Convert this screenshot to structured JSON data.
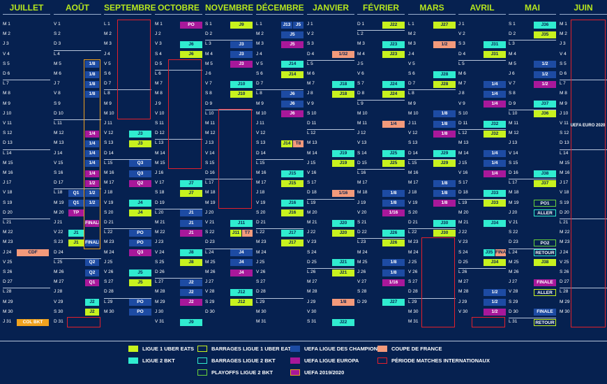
{
  "months": [
    {
      "name": "JUILLET",
      "days": 31,
      "start": 1
    },
    {
      "name": "AOÛT",
      "days": 31,
      "start": 4
    },
    {
      "name": "SEPTEMBRE",
      "days": 30,
      "start": 0
    },
    {
      "name": "OCTOBRE",
      "days": 31,
      "start": 2
    },
    {
      "name": "NOVEMBRE",
      "days": 30,
      "start": 5
    },
    {
      "name": "DÉCEMBRE",
      "days": 31,
      "start": 0
    },
    {
      "name": "JANVIER",
      "days": 31,
      "start": 3
    },
    {
      "name": "FÉVRIER",
      "days": 29,
      "start": 6
    },
    {
      "name": "MARS",
      "days": 31,
      "start": 0
    },
    {
      "name": "AVRIL",
      "days": 30,
      "start": 3
    },
    {
      "name": "MAI",
      "days": 31,
      "start": 5
    },
    {
      "name": "JUIN",
      "days": 30,
      "start": 1
    }
  ],
  "weekday_letters": [
    "L",
    "M",
    "M",
    "J",
    "V",
    "S",
    "D"
  ],
  "events": [
    {
      "m": 0,
      "d": 24,
      "c": "CDF",
      "t": "CDF"
    },
    {
      "m": 0,
      "d": 31,
      "c": "CDL",
      "t": "COL BKT"
    },
    {
      "m": 1,
      "d": 5,
      "c": "UCL",
      "t": "1/8"
    },
    {
      "m": 1,
      "d": 6,
      "c": "UCL",
      "t": "1/8"
    },
    {
      "m": 1,
      "d": 7,
      "c": "UCL",
      "t": "1/8"
    },
    {
      "m": 1,
      "d": 8,
      "c": "UCL",
      "t": "1/8"
    },
    {
      "m": 1,
      "d": 12,
      "c": "UEL",
      "t": "1/4"
    },
    {
      "m": 1,
      "d": 13,
      "c": "UCL",
      "t": "1/4"
    },
    {
      "m": 1,
      "d": 14,
      "c": "UCL",
      "t": "1/4"
    },
    {
      "m": 1,
      "d": 15,
      "c": "UCL",
      "t": "1/4"
    },
    {
      "m": 1,
      "d": 16,
      "c": "UEL",
      "t": "1/4"
    },
    {
      "m": 1,
      "d": 17,
      "c": "UEL",
      "t": "1/2"
    },
    {
      "m": 1,
      "d": 18,
      "c": "UCL",
      "t": "1/2"
    },
    {
      "m": 1,
      "d": 19,
      "c": "UCL",
      "t": "1/2"
    },
    {
      "m": 1,
      "d": 21,
      "c": "UEL",
      "t": "FINALE"
    },
    {
      "m": 1,
      "d": 23,
      "c": "UCL",
      "t": "FINALE"
    },
    {
      "m": 1,
      "d": 18,
      "c": "UCL",
      "t": "Q1",
      "lane": "a"
    },
    {
      "m": 1,
      "d": 19,
      "c": "UCL",
      "t": "Q1",
      "lane": "a"
    },
    {
      "m": 1,
      "d": 20,
      "c": "UEL",
      "t": "TP",
      "lane": "a"
    },
    {
      "m": 1,
      "d": 22,
      "c": "L2",
      "t": "J1",
      "lane": "a"
    },
    {
      "m": 1,
      "d": 23,
      "c": "L1",
      "t": "J1",
      "lane": "a"
    },
    {
      "m": 1,
      "d": 25,
      "c": "UCL",
      "t": "Q2"
    },
    {
      "m": 1,
      "d": 26,
      "c": "UCL",
      "t": "Q2"
    },
    {
      "m": 1,
      "d": 27,
      "c": "UEL",
      "t": "Q1"
    },
    {
      "m": 1,
      "d": 29,
      "c": "L2",
      "t": "J2"
    },
    {
      "m": 1,
      "d": 30,
      "c": "L1",
      "t": "J2"
    },
    {
      "m": 2,
      "d": 12,
      "c": "L2",
      "t": "J3"
    },
    {
      "m": 2,
      "d": 13,
      "c": "L1",
      "t": "J3"
    },
    {
      "m": 2,
      "d": 15,
      "c": "UCL",
      "t": "Q3"
    },
    {
      "m": 2,
      "d": 16,
      "c": "UCL",
      "t": "Q3"
    },
    {
      "m": 2,
      "d": 17,
      "c": "UEL",
      "t": "Q2"
    },
    {
      "m": 2,
      "d": 19,
      "c": "L2",
      "t": "J4"
    },
    {
      "m": 2,
      "d": 20,
      "c": "L1",
      "t": "J4"
    },
    {
      "m": 2,
      "d": 22,
      "c": "UCL",
      "t": "PO"
    },
    {
      "m": 2,
      "d": 23,
      "c": "UCL",
      "t": "PO"
    },
    {
      "m": 2,
      "d": 24,
      "c": "UEL",
      "t": "Q3"
    },
    {
      "m": 2,
      "d": 26,
      "c": "L2",
      "t": "J5"
    },
    {
      "m": 2,
      "d": 27,
      "c": "L1",
      "t": "J5"
    },
    {
      "m": 2,
      "d": 29,
      "c": "UCL",
      "t": "PO"
    },
    {
      "m": 2,
      "d": 30,
      "c": "UCL",
      "t": "PO"
    },
    {
      "m": 3,
      "d": 1,
      "c": "UEL",
      "t": "PO"
    },
    {
      "m": 3,
      "d": 3,
      "c": "L2",
      "t": "J6"
    },
    {
      "m": 3,
      "d": 4,
      "c": "L1",
      "t": "J6"
    },
    {
      "m": 3,
      "d": 17,
      "c": "L2",
      "t": "J7"
    },
    {
      "m": 3,
      "d": 18,
      "c": "L1",
      "t": "J7"
    },
    {
      "m": 3,
      "d": 20,
      "c": "UCL",
      "t": "J1"
    },
    {
      "m": 3,
      "d": 21,
      "c": "UCL",
      "t": "J1"
    },
    {
      "m": 3,
      "d": 22,
      "c": "UEL",
      "t": "J1"
    },
    {
      "m": 3,
      "d": 24,
      "c": "L2",
      "t": "J8"
    },
    {
      "m": 3,
      "d": 25,
      "c": "L1",
      "t": "J8"
    },
    {
      "m": 3,
      "d": 27,
      "c": "UCL",
      "t": "J2"
    },
    {
      "m": 3,
      "d": 28,
      "c": "UCL",
      "t": "J2"
    },
    {
      "m": 3,
      "d": 29,
      "c": "UEL",
      "t": "J2"
    },
    {
      "m": 3,
      "d": 31,
      "c": "L2",
      "t": "J9"
    },
    {
      "m": 4,
      "d": 1,
      "c": "L1",
      "t": "J9"
    },
    {
      "m": 4,
      "d": 3,
      "c": "UCL",
      "t": "J3"
    },
    {
      "m": 4,
      "d": 4,
      "c": "UCL",
      "t": "J3"
    },
    {
      "m": 4,
      "d": 5,
      "c": "UEL",
      "t": "J3"
    },
    {
      "m": 4,
      "d": 7,
      "c": "L2",
      "t": "J10"
    },
    {
      "m": 4,
      "d": 8,
      "c": "L1",
      "t": "J10"
    },
    {
      "m": 4,
      "d": 21,
      "c": "L2",
      "t": "J11"
    },
    {
      "m": 4,
      "d": 22,
      "c": "L1",
      "t": "J11",
      "half": 1
    },
    {
      "m": 4,
      "d": 22,
      "c": "CDF",
      "t": "T7",
      "half": 2
    },
    {
      "m": 4,
      "d": 24,
      "c": "UCL",
      "t": "J4"
    },
    {
      "m": 4,
      "d": 25,
      "c": "UCL",
      "t": "J4"
    },
    {
      "m": 4,
      "d": 26,
      "c": "UEL",
      "t": "J4"
    },
    {
      "m": 4,
      "d": 28,
      "c": "L2",
      "t": "J12"
    },
    {
      "m": 4,
      "d": 29,
      "c": "L1",
      "t": "J12"
    },
    {
      "m": 5,
      "d": 1,
      "c": "UCL",
      "t": "J13",
      "half": 1
    },
    {
      "m": 5,
      "d": 1,
      "c": "UCL",
      "t": "J5",
      "half": 2
    },
    {
      "m": 5,
      "d": 2,
      "c": "UCL",
      "t": "J5"
    },
    {
      "m": 5,
      "d": 3,
      "c": "UEL",
      "t": "J5"
    },
    {
      "m": 5,
      "d": 5,
      "c": "L2",
      "t": "J14"
    },
    {
      "m": 5,
      "d": 6,
      "c": "L1",
      "t": "J14"
    },
    {
      "m": 5,
      "d": 8,
      "c": "UCL",
      "t": "J6"
    },
    {
      "m": 5,
      "d": 9,
      "c": "UCL",
      "t": "J6"
    },
    {
      "m": 5,
      "d": 10,
      "c": "UEL",
      "t": "J6"
    },
    {
      "m": 5,
      "d": 13,
      "c": "L1",
      "t": "J14",
      "half": 1
    },
    {
      "m": 5,
      "d": 13,
      "c": "CDF",
      "t": "T8",
      "half": 2
    },
    {
      "m": 5,
      "d": 16,
      "c": "L2",
      "t": "J15"
    },
    {
      "m": 5,
      "d": 17,
      "c": "L1",
      "t": "J15"
    },
    {
      "m": 5,
      "d": 19,
      "c": "L2",
      "t": "J16"
    },
    {
      "m": 5,
      "d": 20,
      "c": "L1",
      "t": "J16"
    },
    {
      "m": 5,
      "d": 22,
      "c": "L2",
      "t": "J17"
    },
    {
      "m": 5,
      "d": 23,
      "c": "L1",
      "t": "J17"
    },
    {
      "m": 6,
      "d": 4,
      "c": "CDF",
      "t": "1/32"
    },
    {
      "m": 6,
      "d": 7,
      "c": "L2",
      "t": "J18"
    },
    {
      "m": 6,
      "d": 8,
      "c": "L1",
      "t": "J18"
    },
    {
      "m": 6,
      "d": 14,
      "c": "L2",
      "t": "J19"
    },
    {
      "m": 6,
      "d": 15,
      "c": "L1",
      "t": "J19"
    },
    {
      "m": 6,
      "d": 18,
      "c": "CDF",
      "t": "1/16"
    },
    {
      "m": 6,
      "d": 21,
      "c": "L2",
      "t": "J20"
    },
    {
      "m": 6,
      "d": 22,
      "c": "L1",
      "t": "J20"
    },
    {
      "m": 6,
      "d": 25,
      "c": "L2",
      "t": "J21"
    },
    {
      "m": 6,
      "d": 26,
      "c": "L1",
      "t": "J21"
    },
    {
      "m": 6,
      "d": 29,
      "c": "CDF",
      "t": "1/8"
    },
    {
      "m": 6,
      "d": 31,
      "c": "L2",
      "t": "J22"
    },
    {
      "m": 7,
      "d": 1,
      "c": "L1",
      "t": "J22"
    },
    {
      "m": 7,
      "d": 3,
      "c": "L2",
      "t": "J23"
    },
    {
      "m": 7,
      "d": 4,
      "c": "L1",
      "t": "J23"
    },
    {
      "m": 7,
      "d": 7,
      "c": "L2",
      "t": "J24"
    },
    {
      "m": 7,
      "d": 8,
      "c": "L1",
      "t": "J24"
    },
    {
      "m": 7,
      "d": 11,
      "c": "CDF",
      "t": "1/4"
    },
    {
      "m": 7,
      "d": 14,
      "c": "L2",
      "t": "J25"
    },
    {
      "m": 7,
      "d": 15,
      "c": "L1",
      "t": "J25"
    },
    {
      "m": 7,
      "d": 18,
      "c": "UCL",
      "t": "1/8"
    },
    {
      "m": 7,
      "d": 19,
      "c": "UCL",
      "t": "1/8"
    },
    {
      "m": 7,
      "d": 20,
      "c": "UEL",
      "t": "1/16"
    },
    {
      "m": 7,
      "d": 22,
      "c": "L2",
      "t": "J26"
    },
    {
      "m": 7,
      "d": 23,
      "c": "L1",
      "t": "J26"
    },
    {
      "m": 7,
      "d": 25,
      "c": "UCL",
      "t": "1/8"
    },
    {
      "m": 7,
      "d": 26,
      "c": "UCL",
      "t": "1/8"
    },
    {
      "m": 7,
      "d": 27,
      "c": "UEL",
      "t": "1/16"
    },
    {
      "m": 7,
      "d": 29,
      "c": "L2",
      "t": "J27"
    },
    {
      "m": 8,
      "d": 1,
      "c": "L1",
      "t": "J27"
    },
    {
      "m": 8,
      "d": 3,
      "c": "CDF",
      "t": "1/2"
    },
    {
      "m": 8,
      "d": 6,
      "c": "L2",
      "t": "J28"
    },
    {
      "m": 8,
      "d": 7,
      "c": "L1",
      "t": "J28"
    },
    {
      "m": 8,
      "d": 10,
      "c": "UCL",
      "t": "1/8"
    },
    {
      "m": 8,
      "d": 11,
      "c": "UCL",
      "t": "1/8"
    },
    {
      "m": 8,
      "d": 12,
      "c": "UEL",
      "t": "1/8"
    },
    {
      "m": 8,
      "d": 14,
      "c": "L2",
      "t": "J29"
    },
    {
      "m": 8,
      "d": 15,
      "c": "L1",
      "t": "J29"
    },
    {
      "m": 8,
      "d": 17,
      "c": "UCL",
      "t": "1/8"
    },
    {
      "m": 8,
      "d": 18,
      "c": "UCL",
      "t": "1/8"
    },
    {
      "m": 8,
      "d": 19,
      "c": "UEL",
      "t": "1/8"
    },
    {
      "m": 8,
      "d": 21,
      "c": "L2",
      "t": "J30"
    },
    {
      "m": 8,
      "d": 22,
      "c": "L1",
      "t": "J30"
    },
    {
      "m": 9,
      "d": 3,
      "c": "L2",
      "t": "J31"
    },
    {
      "m": 9,
      "d": 4,
      "c": "L1",
      "t": "J31"
    },
    {
      "m": 9,
      "d": 7,
      "c": "UCL",
      "t": "1/4"
    },
    {
      "m": 9,
      "d": 8,
      "c": "UCL",
      "t": "1/4"
    },
    {
      "m": 9,
      "d": 9,
      "c": "UEL",
      "t": "1/4"
    },
    {
      "m": 9,
      "d": 11,
      "c": "L2",
      "t": "J32"
    },
    {
      "m": 9,
      "d": 12,
      "c": "L1",
      "t": "J32"
    },
    {
      "m": 9,
      "d": 14,
      "c": "UCL",
      "t": "1/4"
    },
    {
      "m": 9,
      "d": 15,
      "c": "UCL",
      "t": "1/4"
    },
    {
      "m": 9,
      "d": 16,
      "c": "UEL",
      "t": "1/4"
    },
    {
      "m": 9,
      "d": 18,
      "c": "L2",
      "t": "J33"
    },
    {
      "m": 9,
      "d": 19,
      "c": "L1",
      "t": "J33"
    },
    {
      "m": 9,
      "d": 21,
      "c": "L2",
      "t": "J34"
    },
    {
      "m": 9,
      "d": 24,
      "c": "L2",
      "t": "J35",
      "half": 1
    },
    {
      "m": 9,
      "d": 24,
      "c": "CDF",
      "t": "FINALE",
      "half": 2
    },
    {
      "m": 9,
      "d": 25,
      "c": "L1",
      "t": "J34"
    },
    {
      "m": 9,
      "d": 28,
      "c": "UCL",
      "t": "1/2"
    },
    {
      "m": 9,
      "d": 29,
      "c": "UCL",
      "t": "1/2"
    },
    {
      "m": 9,
      "d": 30,
      "c": "UEL",
      "t": "1/2"
    },
    {
      "m": 10,
      "d": 1,
      "c": "L2",
      "t": "J36"
    },
    {
      "m": 10,
      "d": 2,
      "c": "L1",
      "t": "J35"
    },
    {
      "m": 10,
      "d": 5,
      "c": "UCL",
      "t": "1/2"
    },
    {
      "m": 10,
      "d": 6,
      "c": "UCL",
      "t": "1/2"
    },
    {
      "m": 10,
      "d": 7,
      "c": "UEL",
      "t": "1/2"
    },
    {
      "m": 10,
      "d": 9,
      "c": "L2",
      "t": "J37"
    },
    {
      "m": 10,
      "d": 10,
      "c": "L1",
      "t": "J36"
    },
    {
      "m": 10,
      "d": 16,
      "c": "L2",
      "t": "J38"
    },
    {
      "m": 10,
      "d": 17,
      "c": "L1",
      "t": "J37"
    },
    {
      "m": 10,
      "d": 19,
      "c": "PO2",
      "t": "PO1"
    },
    {
      "m": 10,
      "d": 20,
      "c": "BL2",
      "t": "ALLER"
    },
    {
      "m": 10,
      "d": 23,
      "c": "PO2",
      "t": "PO2"
    },
    {
      "m": 10,
      "d": 24,
      "c": "BL2",
      "t": "RETOUR"
    },
    {
      "m": 10,
      "d": 25,
      "c": "L1",
      "t": "J38"
    },
    {
      "m": 10,
      "d": 27,
      "c": "UEL",
      "t": "FINALE"
    },
    {
      "m": 10,
      "d": 28,
      "c": "BL1",
      "t": "ALLER"
    },
    {
      "m": 10,
      "d": 30,
      "c": "UCL",
      "t": "FINALE"
    },
    {
      "m": 10,
      "d": 31,
      "c": "BL1",
      "t": "RETOUR"
    }
  ],
  "intl_boxes": [
    {
      "m": 2,
      "from": 1,
      "to": 10
    },
    {
      "m": 3,
      "from": 5,
      "to": 15
    },
    {
      "m": 4,
      "from": 10,
      "to": 19
    },
    {
      "m": 8,
      "from": 23,
      "to": 31
    },
    {
      "m": 11,
      "from": 1,
      "to": 31
    },
    {
      "m": 1,
      "from": 31,
      "to": 31
    },
    {
      "m": 9,
      "from": 31,
      "to": 31
    }
  ],
  "euro_box": {
    "m": 1,
    "from": 5,
    "to": 23
  },
  "euro_label": "UEFA EURO 2020",
  "legend": [
    {
      "c": "L1",
      "label": "LIGUE 1 UBER EATS",
      "col": 0,
      "row": 0
    },
    {
      "c": "L2",
      "label": "LIGUE 2 BKT",
      "col": 0,
      "row": 1
    },
    {
      "c": "BL1",
      "label": "BARRAGES LIGUE 1 UBER EATS",
      "col": 1,
      "row": 0
    },
    {
      "c": "BL2",
      "label": "BARRAGES LIGUE 2 BKT",
      "col": 1,
      "row": 1
    },
    {
      "c": "PO2",
      "label": "PLAYOFFS LIGUE 2 BKT",
      "col": 1,
      "row": 2
    },
    {
      "c": "UCL",
      "label": "UEFA LIGUE DES CHAMPIONS",
      "col": 2,
      "row": 0
    },
    {
      "c": "UEL",
      "label": "UEFA LIGUE EUROPA",
      "col": 2,
      "row": 1
    },
    {
      "c": "EURO",
      "label": "UEFA 2019/2020",
      "col": 2,
      "row": 2
    },
    {
      "c": "CDF",
      "label": "COUPE DE FRANCE",
      "col": 3,
      "row": 0
    },
    {
      "c": "INTL",
      "label": "PÉRIODE MATCHES INTERNATIONAUX",
      "col": 3,
      "row": 1
    }
  ],
  "colors": {
    "background": "#062150",
    "month_header": "#b6e71e",
    "ligue1": "#c8f21e",
    "ligue2": "#30ecd0",
    "ucl": "#1d4ba3",
    "uel": "#a8189a",
    "cdf": "#f39a7b",
    "intl": "#e3202c",
    "euro": "#f0a21e"
  }
}
